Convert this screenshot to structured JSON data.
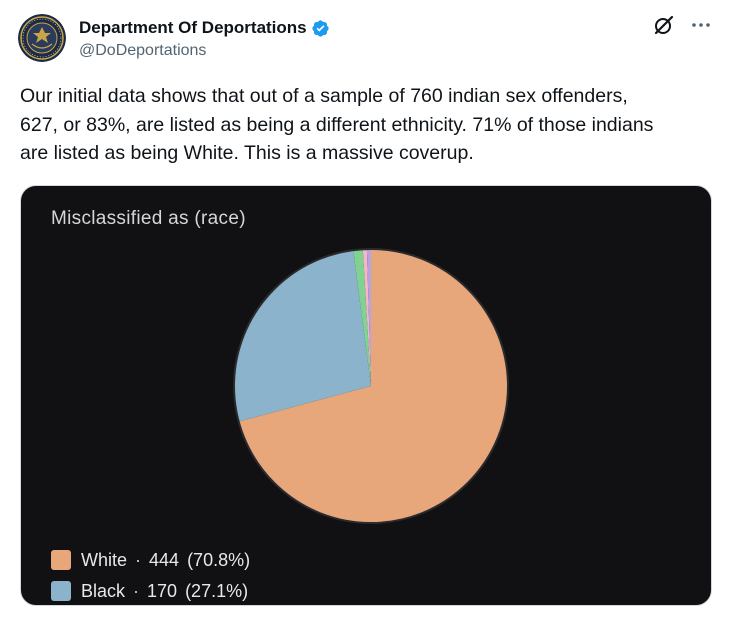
{
  "account": {
    "display_name": "Department Of Deportations",
    "handle": "@DoDeportations"
  },
  "tweet": {
    "text": "Our initial data shows that out of a sample of 760 indian sex offenders,\n627, or 83%, are listed as being a different ethnicity. 71% of those indians\nare listed as being White. This is a massive coverup."
  },
  "colors": {
    "verified_blue": "#1d9bf0",
    "media_bg": "#111114"
  },
  "chart_data": {
    "type": "pie",
    "title": "Misclassified as (race)",
    "slices": [
      {
        "label": "White",
        "value": 444,
        "percent": "(70.8%)",
        "color": "#e8a77b"
      },
      {
        "label": "Black",
        "value": 170,
        "percent": "(27.1%)",
        "color": "#8cb3cc"
      },
      {
        "label": "",
        "value": 7,
        "color": "#7fd28f"
      },
      {
        "label": "",
        "value": 3,
        "color": "#f5b7c8"
      },
      {
        "label": "",
        "value": 3,
        "color": "#b7a3e0"
      }
    ],
    "legend": [
      {
        "label": "White",
        "separator": "·",
        "value": "444",
        "percent": "(70.8%)",
        "color": "#e8a77b"
      },
      {
        "label": "Black",
        "separator": "·",
        "value": "170",
        "percent": "(27.1%)",
        "color": "#8cb3cc"
      }
    ],
    "legend_position": "bottom-left"
  }
}
